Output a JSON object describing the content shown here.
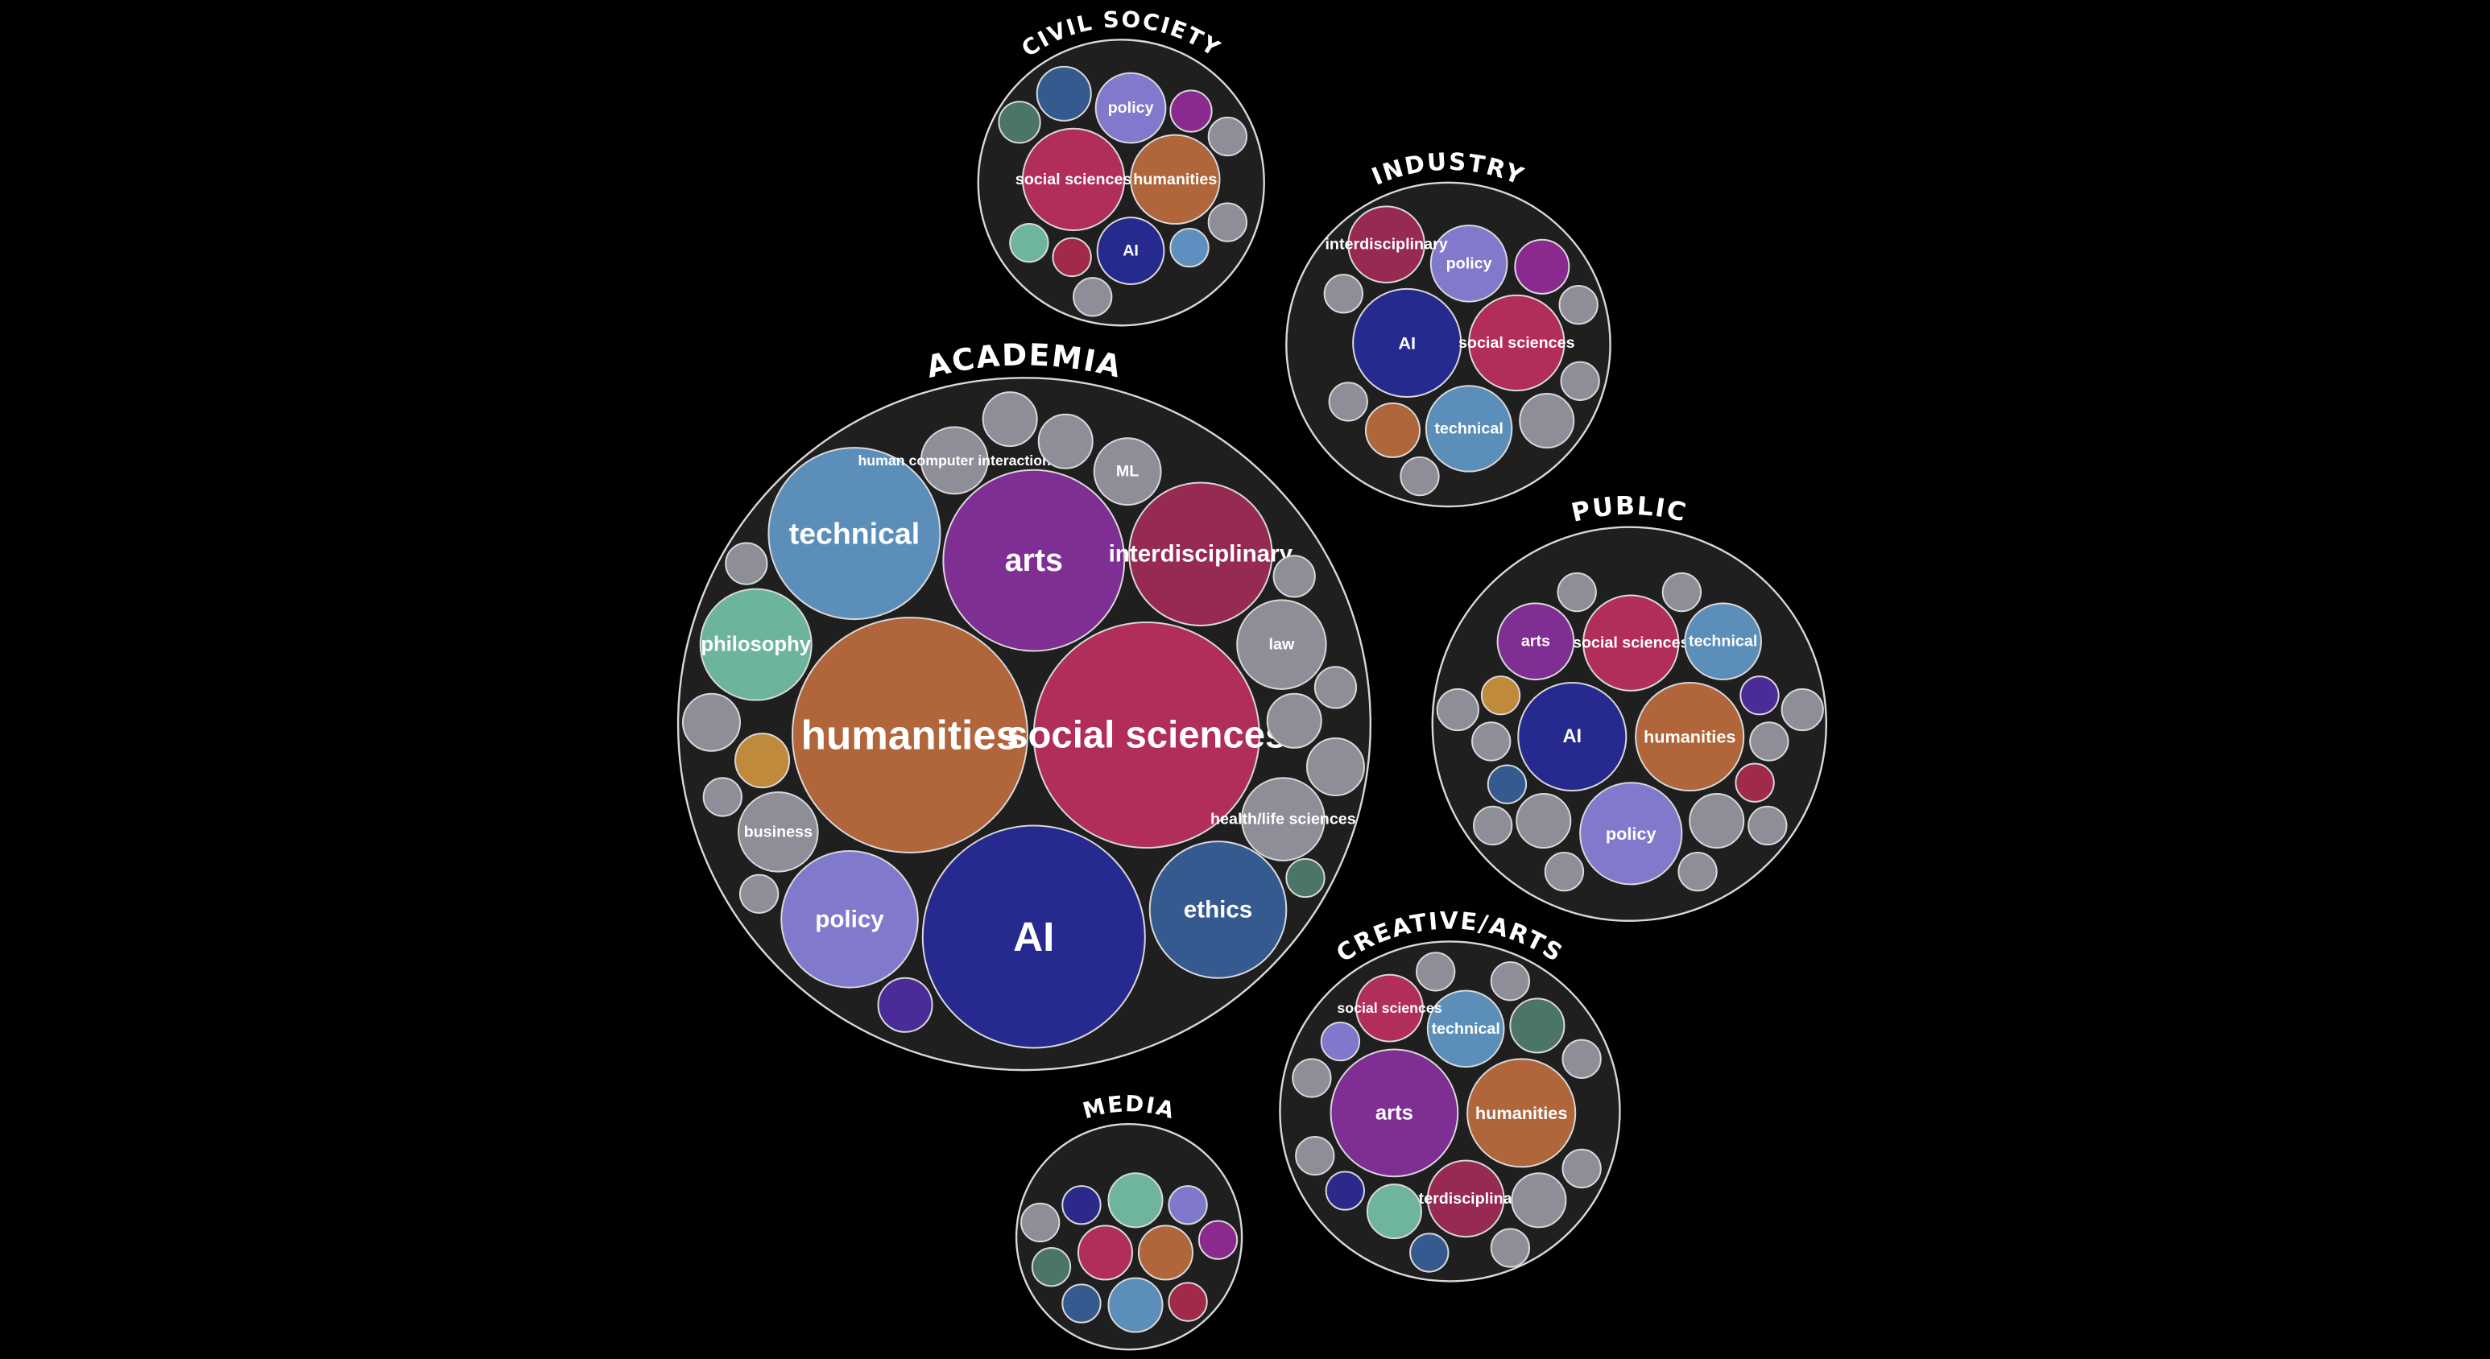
{
  "colors": {
    "background": "#000000",
    "group_fill": "#1f1f1f",
    "stroke": "#d8d8d8",
    "AI": "#262a8e",
    "humanities": "#b0653a",
    "social sciences": "#b22e5a",
    "technical": "#5b8fba",
    "arts": "#7f2e93",
    "interdisciplinary": "#962a52",
    "policy": "#8179cc",
    "philosophy": "#6cb59c",
    "ethics": "#355a8f",
    "gray": "#8e8e98",
    "dark-teal": "#4b7566",
    "mustard": "#c08a3c",
    "indigo": "#4a2b98",
    "plum": "#8a2a8e",
    "crimson": "#a1294a",
    "steel": "#5f8fc0",
    "navy": "#2b2a8a",
    "mint": "#6fb59c",
    "denim": "#355a8f",
    "violet": "#7f78cc"
  },
  "groups": [
    {
      "name": "ACADEMIA",
      "bubbles": [
        {
          "label": "humanities",
          "color": "humanities"
        },
        {
          "label": "social sciences",
          "color": "social sciences"
        },
        {
          "label": "AI",
          "color": "AI"
        },
        {
          "label": "arts",
          "color": "arts"
        },
        {
          "label": "technical",
          "color": "technical"
        },
        {
          "label": "interdisciplinary",
          "color": "interdisciplinary"
        },
        {
          "label": "policy",
          "color": "policy"
        },
        {
          "label": "ethics",
          "color": "ethics"
        },
        {
          "label": "philosophy",
          "color": "philosophy"
        },
        {
          "label": "law",
          "color": "gray"
        },
        {
          "label": "health/life sciences",
          "color": "gray"
        },
        {
          "label": "business",
          "color": "gray"
        },
        {
          "label": "ML",
          "color": "gray"
        },
        {
          "label": "human computer interaction",
          "color": "gray"
        },
        {
          "label": "",
          "color": "gray"
        },
        {
          "label": "",
          "color": "gray"
        },
        {
          "label": "",
          "color": "gray"
        },
        {
          "label": "",
          "color": "gray"
        },
        {
          "label": "",
          "color": "gray"
        },
        {
          "label": "",
          "color": "gray"
        },
        {
          "label": "",
          "color": "gray"
        },
        {
          "label": "",
          "color": "gray"
        },
        {
          "label": "",
          "color": "gray"
        },
        {
          "label": "",
          "color": "gray"
        },
        {
          "label": "",
          "color": "dark-teal"
        },
        {
          "label": "",
          "color": "mustard"
        },
        {
          "label": "",
          "color": "indigo"
        }
      ]
    },
    {
      "name": "CIVIL SOCIETY",
      "bubbles": [
        {
          "label": "social sciences",
          "color": "social sciences"
        },
        {
          "label": "humanities",
          "color": "humanities"
        },
        {
          "label": "policy",
          "color": "policy"
        },
        {
          "label": "AI",
          "color": "AI"
        },
        {
          "label": "",
          "color": "denim"
        },
        {
          "label": "",
          "color": "plum"
        },
        {
          "label": "",
          "color": "dark-teal"
        },
        {
          "label": "",
          "color": "mint"
        },
        {
          "label": "",
          "color": "crimson"
        },
        {
          "label": "",
          "color": "steel"
        },
        {
          "label": "",
          "color": "gray"
        },
        {
          "label": "",
          "color": "gray"
        },
        {
          "label": "",
          "color": "gray"
        }
      ]
    },
    {
      "name": "INDUSTRY",
      "bubbles": [
        {
          "label": "AI",
          "color": "AI"
        },
        {
          "label": "social sciences",
          "color": "social sciences"
        },
        {
          "label": "technical",
          "color": "technical"
        },
        {
          "label": "policy",
          "color": "policy"
        },
        {
          "label": "interdisciplinary",
          "color": "interdisciplinary"
        },
        {
          "label": "",
          "color": "plum"
        },
        {
          "label": "",
          "color": "humanities"
        },
        {
          "label": "",
          "color": "gray"
        },
        {
          "label": "",
          "color": "gray"
        },
        {
          "label": "",
          "color": "gray"
        },
        {
          "label": "",
          "color": "gray"
        },
        {
          "label": "",
          "color": "gray"
        },
        {
          "label": "",
          "color": "gray"
        }
      ]
    },
    {
      "name": "PUBLIC",
      "bubbles": [
        {
          "label": "AI",
          "color": "AI"
        },
        {
          "label": "humanities",
          "color": "humanities"
        },
        {
          "label": "policy",
          "color": "policy"
        },
        {
          "label": "social sciences",
          "color": "social sciences"
        },
        {
          "label": "technical",
          "color": "technical"
        },
        {
          "label": "arts",
          "color": "arts"
        },
        {
          "label": "",
          "color": "mustard"
        },
        {
          "label": "",
          "color": "denim"
        },
        {
          "label": "",
          "color": "indigo"
        },
        {
          "label": "",
          "color": "crimson"
        },
        {
          "label": "",
          "color": "gray"
        },
        {
          "label": "",
          "color": "gray"
        },
        {
          "label": "",
          "color": "gray"
        },
        {
          "label": "",
          "color": "gray"
        },
        {
          "label": "",
          "color": "gray"
        },
        {
          "label": "",
          "color": "gray"
        },
        {
          "label": "",
          "color": "gray"
        },
        {
          "label": "",
          "color": "gray"
        },
        {
          "label": "",
          "color": "gray"
        },
        {
          "label": "",
          "color": "gray"
        },
        {
          "label": "",
          "color": "gray"
        },
        {
          "label": "",
          "color": "gray"
        }
      ]
    },
    {
      "name": "CREATIVE/ARTS",
      "bubbles": [
        {
          "label": "arts",
          "color": "arts"
        },
        {
          "label": "humanities",
          "color": "humanities"
        },
        {
          "label": "technical",
          "color": "technical"
        },
        {
          "label": "interdisciplinary",
          "color": "interdisciplinary"
        },
        {
          "label": "social sciences",
          "color": "social sciences"
        },
        {
          "label": "",
          "color": "dark-teal"
        },
        {
          "label": "",
          "color": "mint"
        },
        {
          "label": "",
          "color": "violet"
        },
        {
          "label": "",
          "color": "navy"
        },
        {
          "label": "",
          "color": "denim"
        },
        {
          "label": "",
          "color": "gray"
        },
        {
          "label": "",
          "color": "gray"
        },
        {
          "label": "",
          "color": "gray"
        },
        {
          "label": "",
          "color": "gray"
        },
        {
          "label": "",
          "color": "gray"
        },
        {
          "label": "",
          "color": "gray"
        },
        {
          "label": "",
          "color": "gray"
        },
        {
          "label": "",
          "color": "gray"
        }
      ]
    },
    {
      "name": "MEDIA",
      "bubbles": [
        {
          "label": "",
          "color": "mint"
        },
        {
          "label": "",
          "color": "social sciences"
        },
        {
          "label": "",
          "color": "humanities"
        },
        {
          "label": "",
          "color": "technical"
        },
        {
          "label": "",
          "color": "navy"
        },
        {
          "label": "",
          "color": "violet"
        },
        {
          "label": "",
          "color": "plum"
        },
        {
          "label": "",
          "color": "dark-teal"
        },
        {
          "label": "",
          "color": "denim"
        },
        {
          "label": "",
          "color": "crimson"
        },
        {
          "label": "",
          "color": "gray"
        }
      ]
    }
  ]
}
